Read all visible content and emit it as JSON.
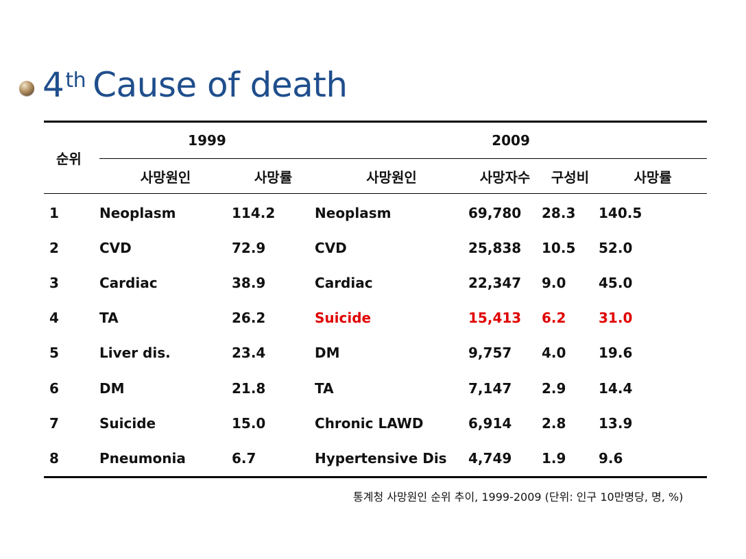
{
  "slide": {
    "title_number": "4",
    "title_suffix": "th",
    "title_rest": "Cause of death",
    "bullet_icon": "bronze-sphere-bullet-icon",
    "title_color": "#1f4e8c"
  },
  "table": {
    "rank_header": "순위",
    "year_1999": "1999",
    "year_2009": "2009",
    "sub_headers_1999": [
      "사망원인",
      "사망률"
    ],
    "sub_headers_2009": [
      "사망원인",
      "사망자수",
      "구성비",
      "사망률"
    ],
    "highlight_color": "#e00000",
    "rows": [
      {
        "rank": "1",
        "c1999": "Neoplasm",
        "r1999": "114.2",
        "c2009": "Neoplasm",
        "n2009": "69,780",
        "p2009": "28.3",
        "r2009": "140.5",
        "highlight": false
      },
      {
        "rank": "2",
        "c1999": "CVD",
        "r1999": "72.9",
        "c2009": "CVD",
        "n2009": "25,838",
        "p2009": "10.5",
        "r2009": "52.0",
        "highlight": false
      },
      {
        "rank": "3",
        "c1999": "Cardiac",
        "r1999": "38.9",
        "c2009": "Cardiac",
        "n2009": "22,347",
        "p2009": "9.0",
        "r2009": "45.0",
        "highlight": false
      },
      {
        "rank": "4",
        "c1999": "TA",
        "r1999": "26.2",
        "c2009": "Suicide",
        "n2009": "15,413",
        "p2009": "6.2",
        "r2009": "31.0",
        "highlight": true
      },
      {
        "rank": "5",
        "c1999": "Liver dis.",
        "r1999": "23.4",
        "c2009": "DM",
        "n2009": "9,757",
        "p2009": "4.0",
        "r2009": "19.6",
        "highlight": false
      },
      {
        "rank": "6",
        "c1999": "DM",
        "r1999": "21.8",
        "c2009": "TA",
        "n2009": "7,147",
        "p2009": "2.9",
        "r2009": "14.4",
        "highlight": false
      },
      {
        "rank": "7",
        "c1999": "Suicide",
        "r1999": "15.0",
        "c2009": "Chronic LAWD",
        "n2009": "6,914",
        "p2009": "2.8",
        "r2009": "13.9",
        "highlight": false
      },
      {
        "rank": "8",
        "c1999": "Pneumonia",
        "r1999": "6.7",
        "c2009": "Hypertensive Dis",
        "n2009": "4,749",
        "p2009": "1.9",
        "r2009": "9.6",
        "highlight": false
      }
    ]
  },
  "source_note": "통계청 사망원인 순위 추이, 1999-2009 (단위: 인구 10만명당, 명, %)"
}
